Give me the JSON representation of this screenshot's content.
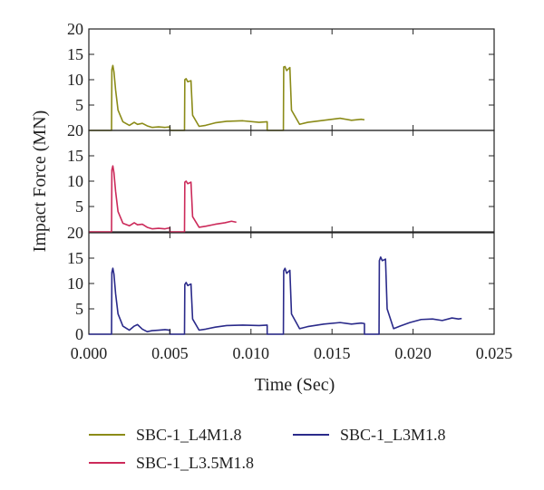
{
  "chart_data": {
    "type": "line",
    "xlabel": "Time (Sec)",
    "ylabel": "Impact Force (MN)",
    "xlim": [
      0.0,
      0.025
    ],
    "x_ticks": [
      "0.000",
      "0.005",
      "0.010",
      "0.015",
      "0.020",
      "0.025"
    ],
    "y_ticks": [
      "5",
      "10",
      "15",
      "20"
    ],
    "y_zero_tick": "0",
    "ylim": [
      0,
      20
    ],
    "grid": false,
    "legend_placement": "bottom",
    "panels": [
      {
        "series_name": "SBC-1_L4M1.8",
        "color": "#8b8b18",
        "ylim": [
          0,
          20
        ],
        "x": [
          0.0,
          0.0014,
          0.00142,
          0.00148,
          0.00155,
          0.00165,
          0.0018,
          0.0021,
          0.0025,
          0.0028,
          0.003,
          0.0033,
          0.0036,
          0.0039,
          0.0043,
          0.0047,
          0.005,
          0.005,
          0.0059,
          0.00592,
          0.006,
          0.0061,
          0.0063,
          0.0064,
          0.0068,
          0.0072,
          0.0078,
          0.0085,
          0.0095,
          0.0105,
          0.011,
          0.011,
          0.012,
          0.01202,
          0.0121,
          0.0122,
          0.0124,
          0.0125,
          0.013,
          0.0135,
          0.0145,
          0.0155,
          0.0162,
          0.0168,
          0.017
        ],
        "y": [
          0,
          0,
          12.0,
          12.8,
          11.5,
          8.0,
          4.0,
          1.7,
          1.0,
          1.6,
          1.2,
          1.4,
          0.9,
          0.6,
          0.7,
          0.6,
          0.7,
          0,
          0,
          10.0,
          10.2,
          9.6,
          9.8,
          3.0,
          0.8,
          1.0,
          1.5,
          1.8,
          1.9,
          1.6,
          1.7,
          0,
          0,
          12.5,
          12.6,
          11.8,
          12.4,
          4.0,
          1.2,
          1.6,
          2.0,
          2.4,
          2.0,
          2.2,
          2.1
        ]
      },
      {
        "series_name": "SBC-1_L3.5M1.8",
        "color": "#cc2a5a",
        "ylim": [
          0,
          20
        ],
        "x": [
          0.0,
          0.0014,
          0.00142,
          0.00148,
          0.00155,
          0.00165,
          0.0018,
          0.0021,
          0.0025,
          0.0028,
          0.003,
          0.0033,
          0.0036,
          0.0039,
          0.0043,
          0.0047,
          0.005,
          0.005,
          0.0059,
          0.00592,
          0.006,
          0.0061,
          0.0063,
          0.0064,
          0.0068,
          0.0072,
          0.0078,
          0.0084,
          0.0088,
          0.0091
        ],
        "y": [
          0,
          0,
          12.2,
          13.0,
          11.6,
          8.0,
          4.0,
          1.7,
          1.2,
          1.8,
          1.4,
          1.5,
          0.9,
          0.6,
          0.7,
          0.6,
          0.8,
          0,
          0,
          9.8,
          10.0,
          9.5,
          9.8,
          3.0,
          0.9,
          1.1,
          1.5,
          1.8,
          2.1,
          1.9
        ]
      },
      {
        "series_name": "SBC-1_L3M1.8",
        "color": "#2a2a8a",
        "ylim": [
          0,
          20
        ],
        "x": [
          0.0,
          0.0014,
          0.00142,
          0.00148,
          0.00155,
          0.00165,
          0.0018,
          0.0021,
          0.0025,
          0.0028,
          0.003,
          0.0033,
          0.0036,
          0.0039,
          0.0043,
          0.0047,
          0.005,
          0.005,
          0.0059,
          0.00592,
          0.006,
          0.0061,
          0.0063,
          0.0064,
          0.0068,
          0.0072,
          0.0078,
          0.0085,
          0.0095,
          0.0105,
          0.011,
          0.011,
          0.012,
          0.01202,
          0.0121,
          0.0122,
          0.0124,
          0.0125,
          0.013,
          0.0135,
          0.0145,
          0.0155,
          0.0162,
          0.0168,
          0.017,
          0.017,
          0.0179,
          0.01792,
          0.018,
          0.0181,
          0.0183,
          0.0184,
          0.0188,
          0.0192,
          0.0198,
          0.0205,
          0.0212,
          0.0218,
          0.0224,
          0.0228,
          0.023
        ],
        "y": [
          0,
          0,
          12.2,
          13.0,
          11.8,
          8.0,
          4.0,
          1.6,
          0.8,
          1.6,
          1.9,
          1.0,
          0.5,
          0.7,
          0.8,
          0.9,
          0.8,
          0,
          0,
          9.8,
          10.2,
          9.6,
          9.9,
          3.0,
          0.8,
          1.0,
          1.4,
          1.7,
          1.8,
          1.7,
          1.8,
          0,
          0,
          12.5,
          13.0,
          12.0,
          12.6,
          4.0,
          1.1,
          1.5,
          2.0,
          2.3,
          2.0,
          2.2,
          2.1,
          0,
          0,
          14.5,
          15.2,
          14.5,
          14.8,
          5.0,
          1.1,
          1.6,
          2.3,
          2.9,
          3.0,
          2.7,
          3.2,
          3.0,
          3.1
        ]
      }
    ],
    "legend": [
      {
        "name": "SBC-1_L4M1.8",
        "color": "#8b8b18"
      },
      {
        "name": "SBC-1_L3M1.8",
        "color": "#2a2a8a"
      },
      {
        "name": "SBC-1_L3.5M1.8",
        "color": "#cc2a5a"
      }
    ]
  }
}
